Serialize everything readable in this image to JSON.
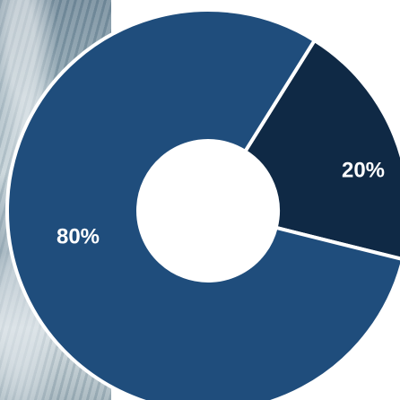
{
  "chart_data": {
    "type": "pie",
    "title": "",
    "series": [
      {
        "values": [
          80,
          20
        ]
      }
    ],
    "slices": [
      {
        "label": "80%",
        "value": 80,
        "color": "#1f4d7c"
      },
      {
        "label": "20%",
        "value": 20,
        "color": "#0f2945"
      }
    ],
    "donut": true,
    "legend": "none",
    "grid": false
  },
  "colors": {
    "separator": "#ffffff",
    "label_text": "#ffffff"
  },
  "background": {
    "photo": "water-rocks"
  }
}
